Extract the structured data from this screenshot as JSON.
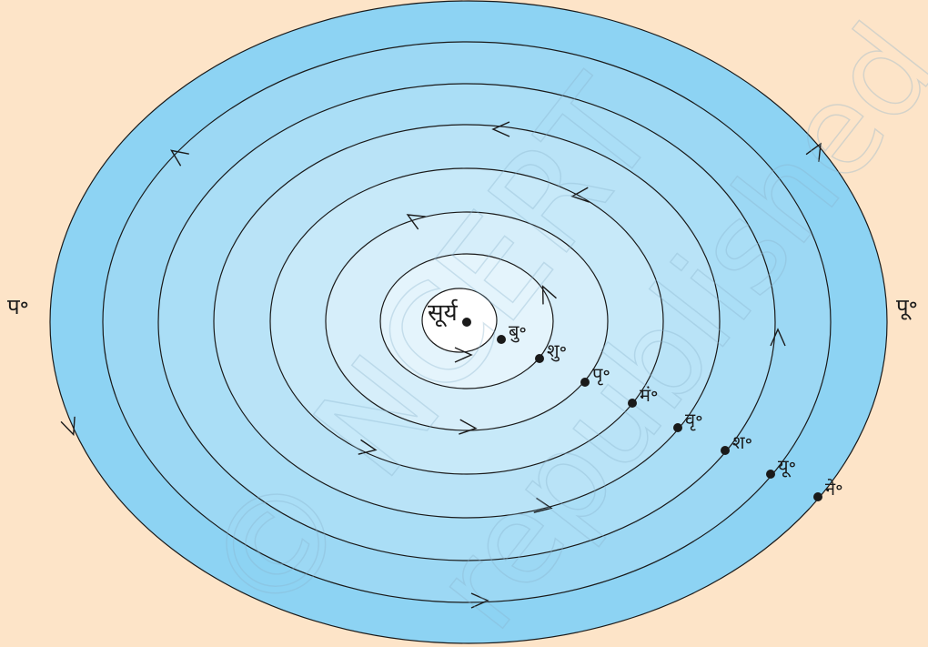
{
  "colors": {
    "background": "#fde4c8",
    "orbit_outer": "#8dd3f3",
    "orbit_inner": "#f3f9fd",
    "stroke": "#1a1a1a"
  },
  "sun": {
    "label": "सूर्य"
  },
  "directions": {
    "west": "प॰",
    "east": "पू॰"
  },
  "planets": [
    {
      "id": "mercury",
      "label": "बु॰"
    },
    {
      "id": "venus",
      "label": "शु॰"
    },
    {
      "id": "earth",
      "label": "पृ॰"
    },
    {
      "id": "mars",
      "label": "मं॰"
    },
    {
      "id": "jupiter",
      "label": "वृ॰"
    },
    {
      "id": "saturn",
      "label": "श॰"
    },
    {
      "id": "uranus",
      "label": "यू॰"
    },
    {
      "id": "neptune",
      "label": "ने॰"
    }
  ],
  "watermark": {
    "text_1": "© NCERT",
    "text_2": "republished"
  }
}
